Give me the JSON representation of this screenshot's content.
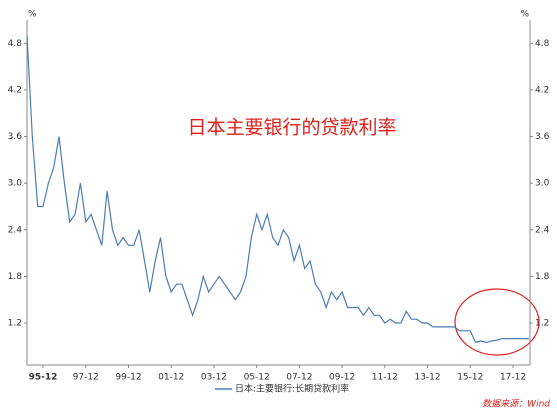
{
  "chart_data": {
    "type": "line",
    "title": "日本主要银行的贷款利率",
    "y_unit": "%",
    "source": "数据来源：Wind",
    "categories": [
      "95-03",
      "95-06",
      "95-09",
      "95-12",
      "96-03",
      "96-06",
      "96-09",
      "96-12",
      "97-03",
      "97-06",
      "97-09",
      "97-12",
      "98-03",
      "98-06",
      "98-09",
      "98-12",
      "99-03",
      "99-06",
      "99-09",
      "99-12",
      "00-03",
      "00-06",
      "00-09",
      "00-12",
      "01-03",
      "01-06",
      "01-09",
      "01-12",
      "02-03",
      "02-06",
      "02-09",
      "02-12",
      "03-03",
      "03-06",
      "03-09",
      "03-12",
      "04-03",
      "04-06",
      "04-09",
      "04-12",
      "05-03",
      "05-06",
      "05-09",
      "05-12",
      "06-03",
      "06-06",
      "06-09",
      "06-12",
      "07-03",
      "07-06",
      "07-09",
      "07-12",
      "08-03",
      "08-06",
      "08-09",
      "08-12",
      "09-03",
      "09-06",
      "09-09",
      "09-12",
      "10-03",
      "10-06",
      "10-09",
      "10-12",
      "11-03",
      "11-06",
      "11-09",
      "11-12",
      "12-03",
      "12-06",
      "12-09",
      "12-12",
      "13-03",
      "13-06",
      "13-09",
      "13-12",
      "14-03",
      "14-06",
      "14-09",
      "14-12",
      "15-03",
      "15-06",
      "15-09",
      "15-12",
      "16-03",
      "16-06",
      "16-09",
      "16-12",
      "17-03",
      "17-06",
      "17-09",
      "17-12",
      "18-03",
      "18-06",
      "18-09"
    ],
    "series": [
      {
        "name": "日本:主要银行:长期贷款利率",
        "color": "#4a7eb5",
        "values": [
          4.9,
          3.6,
          2.7,
          2.7,
          3.0,
          3.2,
          3.6,
          3.0,
          2.5,
          2.6,
          3.0,
          2.5,
          2.6,
          2.4,
          2.2,
          2.9,
          2.4,
          2.2,
          2.3,
          2.2,
          2.2,
          2.4,
          2.0,
          1.6,
          2.0,
          2.3,
          1.8,
          1.6,
          1.7,
          1.7,
          1.5,
          1.3,
          1.5,
          1.8,
          1.6,
          1.7,
          1.8,
          1.7,
          1.6,
          1.5,
          1.6,
          1.8,
          2.3,
          2.6,
          2.4,
          2.6,
          2.3,
          2.2,
          2.4,
          2.3,
          2.0,
          2.2,
          1.9,
          2.0,
          1.7,
          1.6,
          1.4,
          1.6,
          1.5,
          1.6,
          1.4,
          1.4,
          1.4,
          1.3,
          1.4,
          1.3,
          1.3,
          1.2,
          1.25,
          1.2,
          1.2,
          1.35,
          1.25,
          1.25,
          1.2,
          1.2,
          1.15,
          1.15,
          1.15,
          1.15,
          1.15,
          1.1,
          1.1,
          1.1,
          0.95,
          0.97,
          0.95,
          0.97,
          0.98,
          1.0,
          1.0,
          1.0,
          1.0,
          1.0,
          1.0
        ]
      }
    ],
    "xticks": [
      "95-12",
      "97-12",
      "99-12",
      "01-12",
      "03-12",
      "05-12",
      "07-12",
      "09-12",
      "11-12",
      "13-12",
      "15-12",
      "17-12"
    ],
    "ylim": [
      0.66,
      5.1
    ],
    "yticks": [
      1.2,
      1.8,
      2.4,
      {
        "value": 3,
        "label": "3.0"
      },
      3.6,
      4.2,
      4.8
    ],
    "title_color": "#e0201b"
  }
}
